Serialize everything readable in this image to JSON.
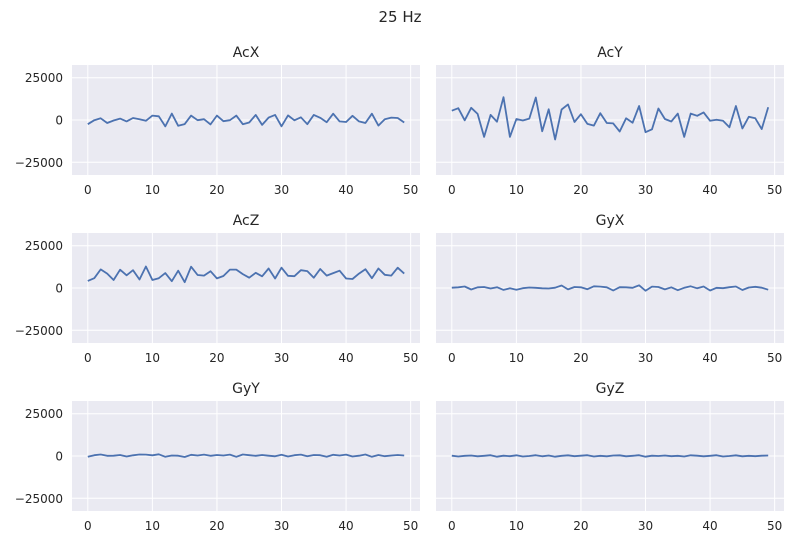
{
  "figure": {
    "suptitle": "25 Hz"
  },
  "style": {
    "panel_bg": "#EAEAF2",
    "grid": "#FFFFFF",
    "line": "#4C72B0"
  },
  "chart_data": [
    {
      "type": "line",
      "title": "AcX",
      "xlabel": "",
      "ylabel": "",
      "xlim": [
        -2.45,
        51.45
      ],
      "ylim": [
        -32500,
        32500
      ],
      "xticks": [
        0,
        10,
        20,
        30,
        40,
        50
      ],
      "yticks": [
        25000,
        0,
        -25000
      ],
      "xtick_labels": [
        "0",
        "10",
        "20",
        "30",
        "40",
        "50"
      ],
      "ytick_labels": [
        "25000",
        "0",
        "−25000"
      ],
      "grid": true,
      "x": [
        0,
        1,
        2,
        3,
        4,
        5,
        6,
        7,
        8,
        9,
        10,
        11,
        12,
        13,
        14,
        15,
        16,
        17,
        18,
        19,
        20,
        21,
        22,
        23,
        24,
        25,
        26,
        27,
        28,
        29,
        30,
        31,
        32,
        33,
        34,
        35,
        36,
        37,
        38,
        39,
        40,
        41,
        42,
        43,
        44,
        45,
        46,
        47,
        48,
        49
      ],
      "values": [
        -2500,
        -100,
        1000,
        -1800,
        -300,
        800,
        -800,
        1200,
        400,
        -500,
        2600,
        2200,
        -3800,
        3800,
        -3400,
        -2400,
        2600,
        -100,
        500,
        -2600,
        2600,
        -700,
        -100,
        2600,
        -2500,
        -1500,
        3000,
        -2900,
        1400,
        3000,
        -3700,
        2700,
        -200,
        1600,
        -2500,
        3000,
        1300,
        -1300,
        3700,
        -800,
        -1200,
        2500,
        -800,
        -1800,
        3700,
        -3300,
        500,
        1400,
        1200,
        -1500
      ]
    },
    {
      "type": "line",
      "title": "AcY",
      "xlabel": "",
      "ylabel": "",
      "xlim": [
        -2.45,
        51.45
      ],
      "ylim": [
        -32500,
        32500
      ],
      "xticks": [
        0,
        10,
        20,
        30,
        40,
        50
      ],
      "yticks": [
        25000,
        0,
        -25000
      ],
      "xtick_labels": [
        "0",
        "10",
        "20",
        "30",
        "40",
        "50"
      ],
      "ytick_labels": [
        "25000",
        "0",
        "−25000"
      ],
      "grid": true,
      "x": [
        0,
        1,
        2,
        3,
        4,
        5,
        6,
        7,
        8,
        9,
        10,
        11,
        12,
        13,
        14,
        15,
        16,
        17,
        18,
        19,
        20,
        21,
        22,
        23,
        24,
        25,
        26,
        27,
        28,
        29,
        30,
        31,
        32,
        33,
        34,
        35,
        36,
        37,
        38,
        39,
        40,
        41,
        42,
        43,
        44,
        45,
        46,
        47,
        48,
        49
      ],
      "values": [
        5500,
        7000,
        -200,
        7200,
        3600,
        -10000,
        3000,
        -1000,
        13500,
        -10000,
        600,
        -300,
        800,
        13300,
        -6700,
        6300,
        -11500,
        6200,
        9200,
        -1200,
        3400,
        -2300,
        -3300,
        4000,
        -1800,
        -2000,
        -6800,
        1000,
        -1600,
        8300,
        -7200,
        -5500,
        6800,
        600,
        -900,
        3800,
        -10000,
        3800,
        2500,
        4500,
        -500,
        200,
        -500,
        -4300,
        8300,
        -5000,
        1900,
        1000,
        -5400,
        7500
      ]
    },
    {
      "type": "line",
      "title": "AcZ",
      "xlabel": "",
      "ylabel": "",
      "xlim": [
        -2.45,
        51.45
      ],
      "ylim": [
        -32500,
        32500
      ],
      "xticks": [
        0,
        10,
        20,
        30,
        40,
        50
      ],
      "yticks": [
        25000,
        0,
        -25000
      ],
      "xtick_labels": [
        "0",
        "10",
        "20",
        "30",
        "40",
        "50"
      ],
      "ytick_labels": [
        "25000",
        "0",
        "−25000"
      ],
      "grid": true,
      "x": [
        0,
        1,
        2,
        3,
        4,
        5,
        6,
        7,
        8,
        9,
        10,
        11,
        12,
        13,
        14,
        15,
        16,
        17,
        18,
        19,
        20,
        21,
        22,
        23,
        24,
        25,
        26,
        27,
        28,
        29,
        30,
        31,
        32,
        33,
        34,
        35,
        36,
        37,
        38,
        39,
        40,
        41,
        42,
        43,
        44,
        45,
        46,
        47,
        48,
        49
      ],
      "values": [
        4200,
        5800,
        11000,
        8500,
        4700,
        10800,
        7500,
        10500,
        5000,
        12700,
        4700,
        5800,
        8800,
        4000,
        10200,
        3400,
        12600,
        7700,
        7300,
        9900,
        5700,
        7100,
        10900,
        10900,
        8200,
        6100,
        9000,
        6900,
        11500,
        5600,
        12000,
        7200,
        7000,
        10500,
        10000,
        6100,
        11200,
        7300,
        8800,
        10200,
        5600,
        5300,
        8500,
        11100,
        5800,
        11500,
        7800,
        7300,
        12000,
        8500
      ]
    },
    {
      "type": "line",
      "title": "GyX",
      "xlabel": "",
      "ylabel": "",
      "xlim": [
        -2.45,
        51.45
      ],
      "ylim": [
        -32500,
        32500
      ],
      "xticks": [
        0,
        10,
        20,
        30,
        40,
        50
      ],
      "yticks": [
        25000,
        0,
        -25000
      ],
      "xtick_labels": [
        "0",
        "10",
        "20",
        "30",
        "40",
        "50"
      ],
      "ytick_labels": [
        "25000",
        "0",
        "−25000"
      ],
      "grid": true,
      "x": [
        0,
        1,
        2,
        3,
        4,
        5,
        6,
        7,
        8,
        9,
        10,
        11,
        12,
        13,
        14,
        15,
        16,
        17,
        18,
        19,
        20,
        21,
        22,
        23,
        24,
        25,
        26,
        27,
        28,
        29,
        30,
        31,
        32,
        33,
        34,
        35,
        36,
        37,
        38,
        39,
        40,
        41,
        42,
        43,
        44,
        45,
        46,
        47,
        48,
        49
      ],
      "values": [
        200,
        400,
        900,
        -900,
        400,
        600,
        -300,
        500,
        -1100,
        -200,
        -1000,
        -100,
        300,
        100,
        -200,
        -300,
        200,
        1500,
        -800,
        600,
        400,
        -700,
        1000,
        800,
        400,
        -1500,
        500,
        400,
        100,
        1600,
        -1600,
        800,
        600,
        -800,
        400,
        -1300,
        100,
        1000,
        -200,
        900,
        -1500,
        100,
        -100,
        500,
        900,
        -1200,
        300,
        700,
        200,
        -1000
      ]
    },
    {
      "type": "line",
      "title": "GyY",
      "xlabel": "",
      "ylabel": "",
      "xlim": [
        -2.45,
        51.45
      ],
      "ylim": [
        -32500,
        32500
      ],
      "xticks": [
        0,
        10,
        20,
        30,
        40,
        50
      ],
      "yticks": [
        25000,
        0,
        -25000
      ],
      "xtick_labels": [
        "0",
        "10",
        "20",
        "30",
        "40",
        "50"
      ],
      "ytick_labels": [
        "25000",
        "0",
        "−25000"
      ],
      "grid": true,
      "x": [
        0,
        1,
        2,
        3,
        4,
        5,
        6,
        7,
        8,
        9,
        10,
        11,
        12,
        13,
        14,
        15,
        16,
        17,
        18,
        19,
        20,
        21,
        22,
        23,
        24,
        25,
        26,
        27,
        28,
        29,
        30,
        31,
        32,
        33,
        34,
        35,
        36,
        37,
        38,
        39,
        40,
        41,
        42,
        43,
        44,
        45,
        46,
        47,
        48,
        49
      ],
      "values": [
        -500,
        500,
        900,
        100,
        200,
        600,
        -300,
        400,
        900,
        800,
        400,
        1000,
        -500,
        300,
        200,
        -600,
        700,
        300,
        800,
        100,
        600,
        300,
        800,
        -500,
        900,
        500,
        100,
        600,
        200,
        -200,
        700,
        -300,
        500,
        800,
        -100,
        600,
        500,
        -400,
        700,
        300,
        800,
        -300,
        200,
        900,
        -500,
        600,
        -100,
        300,
        600,
        300
      ]
    },
    {
      "type": "line",
      "title": "GyZ",
      "xlabel": "",
      "ylabel": "",
      "xlim": [
        -2.45,
        51.45
      ],
      "ylim": [
        -32500,
        32500
      ],
      "xticks": [
        0,
        10,
        20,
        30,
        40,
        50
      ],
      "yticks": [
        25000,
        0,
        -25000
      ],
      "xtick_labels": [
        "0",
        "10",
        "20",
        "30",
        "40",
        "50"
      ],
      "ytick_labels": [
        "25000",
        "0",
        "−25000"
      ],
      "grid": true,
      "x": [
        0,
        1,
        2,
        3,
        4,
        5,
        6,
        7,
        8,
        9,
        10,
        11,
        12,
        13,
        14,
        15,
        16,
        17,
        18,
        19,
        20,
        21,
        22,
        23,
        24,
        25,
        26,
        27,
        28,
        29,
        30,
        31,
        32,
        33,
        34,
        35,
        36,
        37,
        38,
        39,
        40,
        41,
        42,
        43,
        44,
        45,
        46,
        47,
        48,
        49
      ],
      "values": [
        200,
        -300,
        100,
        300,
        -200,
        100,
        500,
        -400,
        200,
        -100,
        400,
        -300,
        0,
        500,
        -200,
        300,
        -400,
        100,
        400,
        -100,
        200,
        500,
        -300,
        100,
        -200,
        300,
        400,
        -200,
        100,
        500,
        -400,
        200,
        0,
        300,
        -100,
        100,
        -300,
        400,
        200,
        -200,
        100,
        500,
        -300,
        0,
        400,
        -200,
        100,
        -100,
        200,
        300
      ]
    }
  ]
}
